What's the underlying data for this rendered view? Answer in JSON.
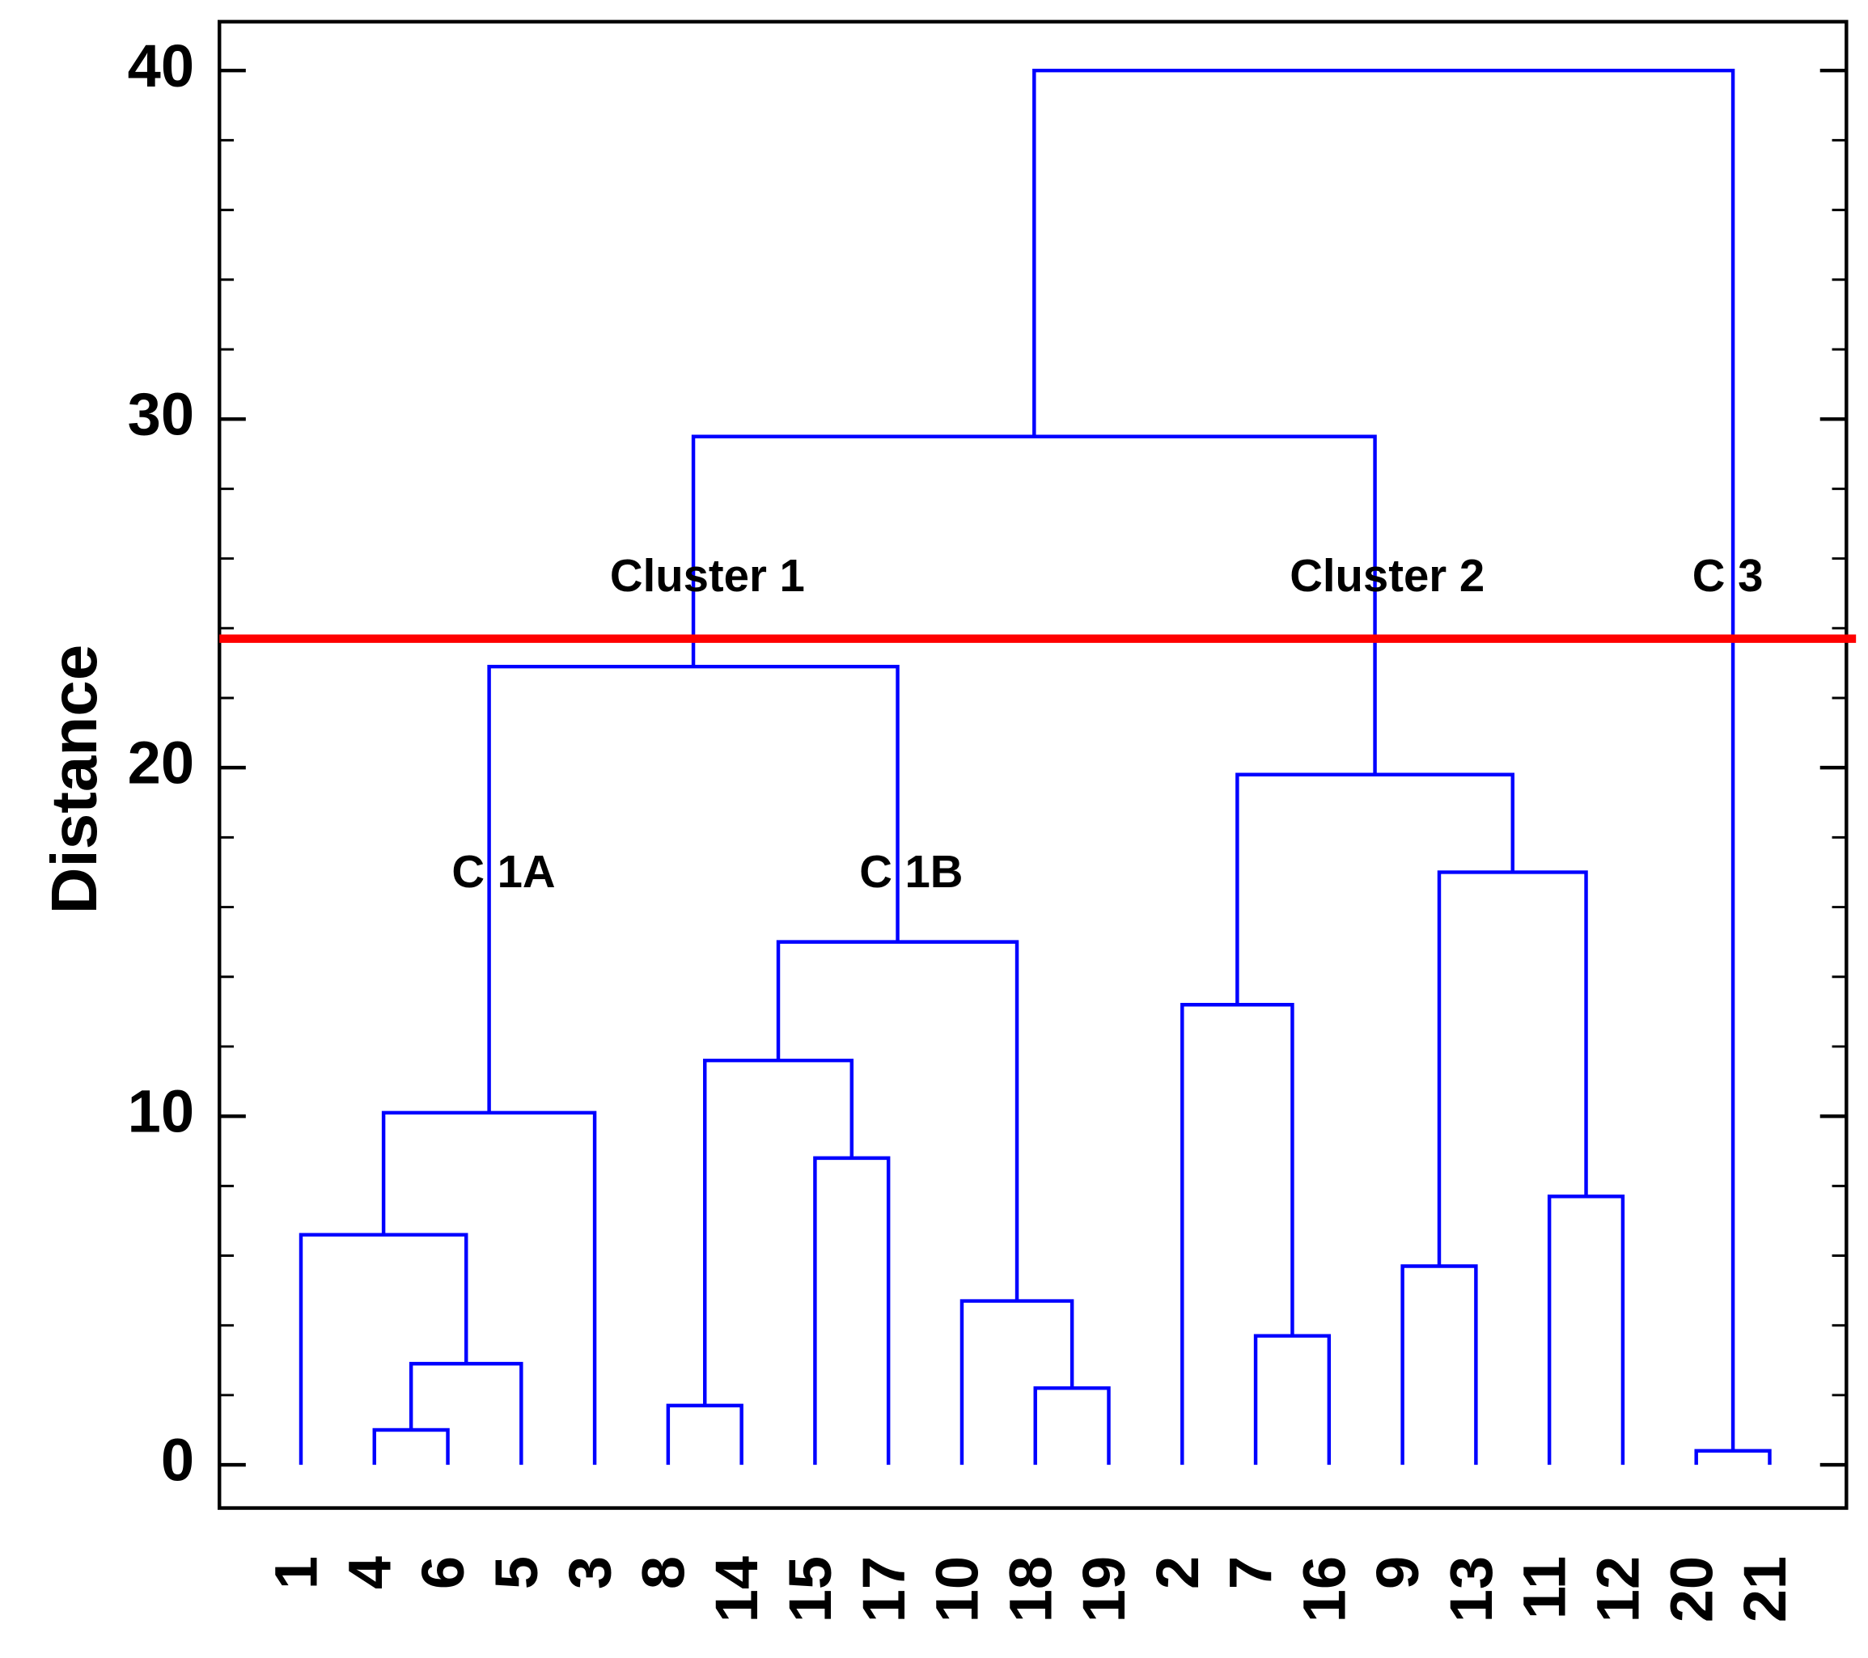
{
  "chart_data": {
    "type": "dendrogram",
    "y_label": "Distance",
    "leaves": [
      "1",
      "4",
      "6",
      "5",
      "3",
      "8",
      "14",
      "15",
      "17",
      "10",
      "18",
      "19",
      "2",
      "7",
      "16",
      "9",
      "13",
      "11",
      "12",
      "20",
      "21"
    ],
    "merges": [
      {
        "children": [
          1,
          2
        ],
        "height": 1.0
      },
      {
        "children": [
          21,
          3
        ],
        "height": 2.9
      },
      {
        "children": [
          0,
          22
        ],
        "height": 6.6
      },
      {
        "children": [
          23,
          4
        ],
        "height": 10.1
      },
      {
        "children": [
          5,
          6
        ],
        "height": 1.7
      },
      {
        "children": [
          7,
          8
        ],
        "height": 8.8
      },
      {
        "children": [
          25,
          26
        ],
        "height": 11.6
      },
      {
        "children": [
          10,
          11
        ],
        "height": 2.2
      },
      {
        "children": [
          9,
          28
        ],
        "height": 4.7
      },
      {
        "children": [
          27,
          29
        ],
        "height": 15.0
      },
      {
        "children": [
          24,
          30
        ],
        "height": 22.9
      },
      {
        "children": [
          13,
          14
        ],
        "height": 3.7
      },
      {
        "children": [
          12,
          32
        ],
        "height": 13.2
      },
      {
        "children": [
          15,
          16
        ],
        "height": 5.7
      },
      {
        "children": [
          17,
          18
        ],
        "height": 7.7
      },
      {
        "children": [
          34,
          35
        ],
        "height": 17.0
      },
      {
        "children": [
          33,
          36
        ],
        "height": 19.8
      },
      {
        "children": [
          31,
          37
        ],
        "height": 29.5
      },
      {
        "children": [
          19,
          20
        ],
        "height": 0.4
      },
      {
        "children": [
          38,
          39
        ],
        "height": 40.0
      }
    ],
    "color": "#0000ff",
    "cut_height": 23.7,
    "cut_color": "#ff0000",
    "annotations": [
      "Cluster 1",
      "Cluster 2",
      "C 3",
      "C 1A",
      "C 1B"
    ],
    "ylim": [
      -1.24,
      41.4
    ],
    "yticks": [
      0,
      10,
      20,
      30,
      40
    ],
    "yminorticks": [
      2,
      4,
      6,
      8,
      12,
      14,
      16,
      18,
      22,
      24,
      26,
      28,
      32,
      34,
      36,
      38
    ]
  }
}
